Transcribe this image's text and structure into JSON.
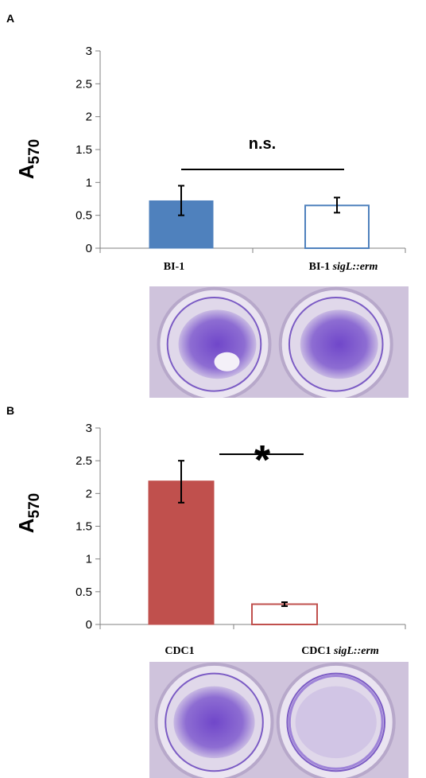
{
  "panels": {
    "a": {
      "letter": "A"
    },
    "b": {
      "letter": "B"
    }
  },
  "chart_data": [
    {
      "type": "bar",
      "categories": [
        "BI-1",
        "BI-1 sigL::erm"
      ],
      "category_parts": [
        {
          "plain": "BI-1",
          "italic": ""
        },
        {
          "plain": "BI-1 ",
          "italic": "sigL::erm"
        }
      ],
      "values": [
        0.72,
        0.65
      ],
      "error_low": [
        0.5,
        0.54
      ],
      "error_high": [
        0.95,
        0.77
      ],
      "bar_styles": [
        "filled",
        "outline"
      ],
      "color": "#4f81bd",
      "ylabel_main": "A",
      "ylabel_sub": "570",
      "ylim": [
        0,
        3
      ],
      "yticks": [
        "0",
        "0.5",
        "1",
        "1.5",
        "2",
        "2.5",
        "3"
      ],
      "significance": "n.s.",
      "grid": false
    },
    {
      "type": "bar",
      "categories": [
        "CDC1",
        "CDC1 sigL::erm"
      ],
      "category_parts": [
        {
          "plain": "CDC1",
          "italic": ""
        },
        {
          "plain": "CDC1 ",
          "italic": "sigL::erm"
        }
      ],
      "values": [
        2.19,
        0.31
      ],
      "error_low": [
        1.86,
        0.28
      ],
      "error_high": [
        2.5,
        0.34
      ],
      "bar_styles": [
        "filled",
        "outline"
      ],
      "color": "#c0504d",
      "ylabel_main": "A",
      "ylabel_sub": "570",
      "ylim": [
        0,
        3
      ],
      "yticks": [
        "0",
        "0.5",
        "1",
        "1.5",
        "2",
        "2.5",
        "3"
      ],
      "significance": "*",
      "grid": false
    }
  ],
  "photos": {
    "stain_color": "#6a3fc8",
    "plate_color": "#d9d0e6"
  }
}
